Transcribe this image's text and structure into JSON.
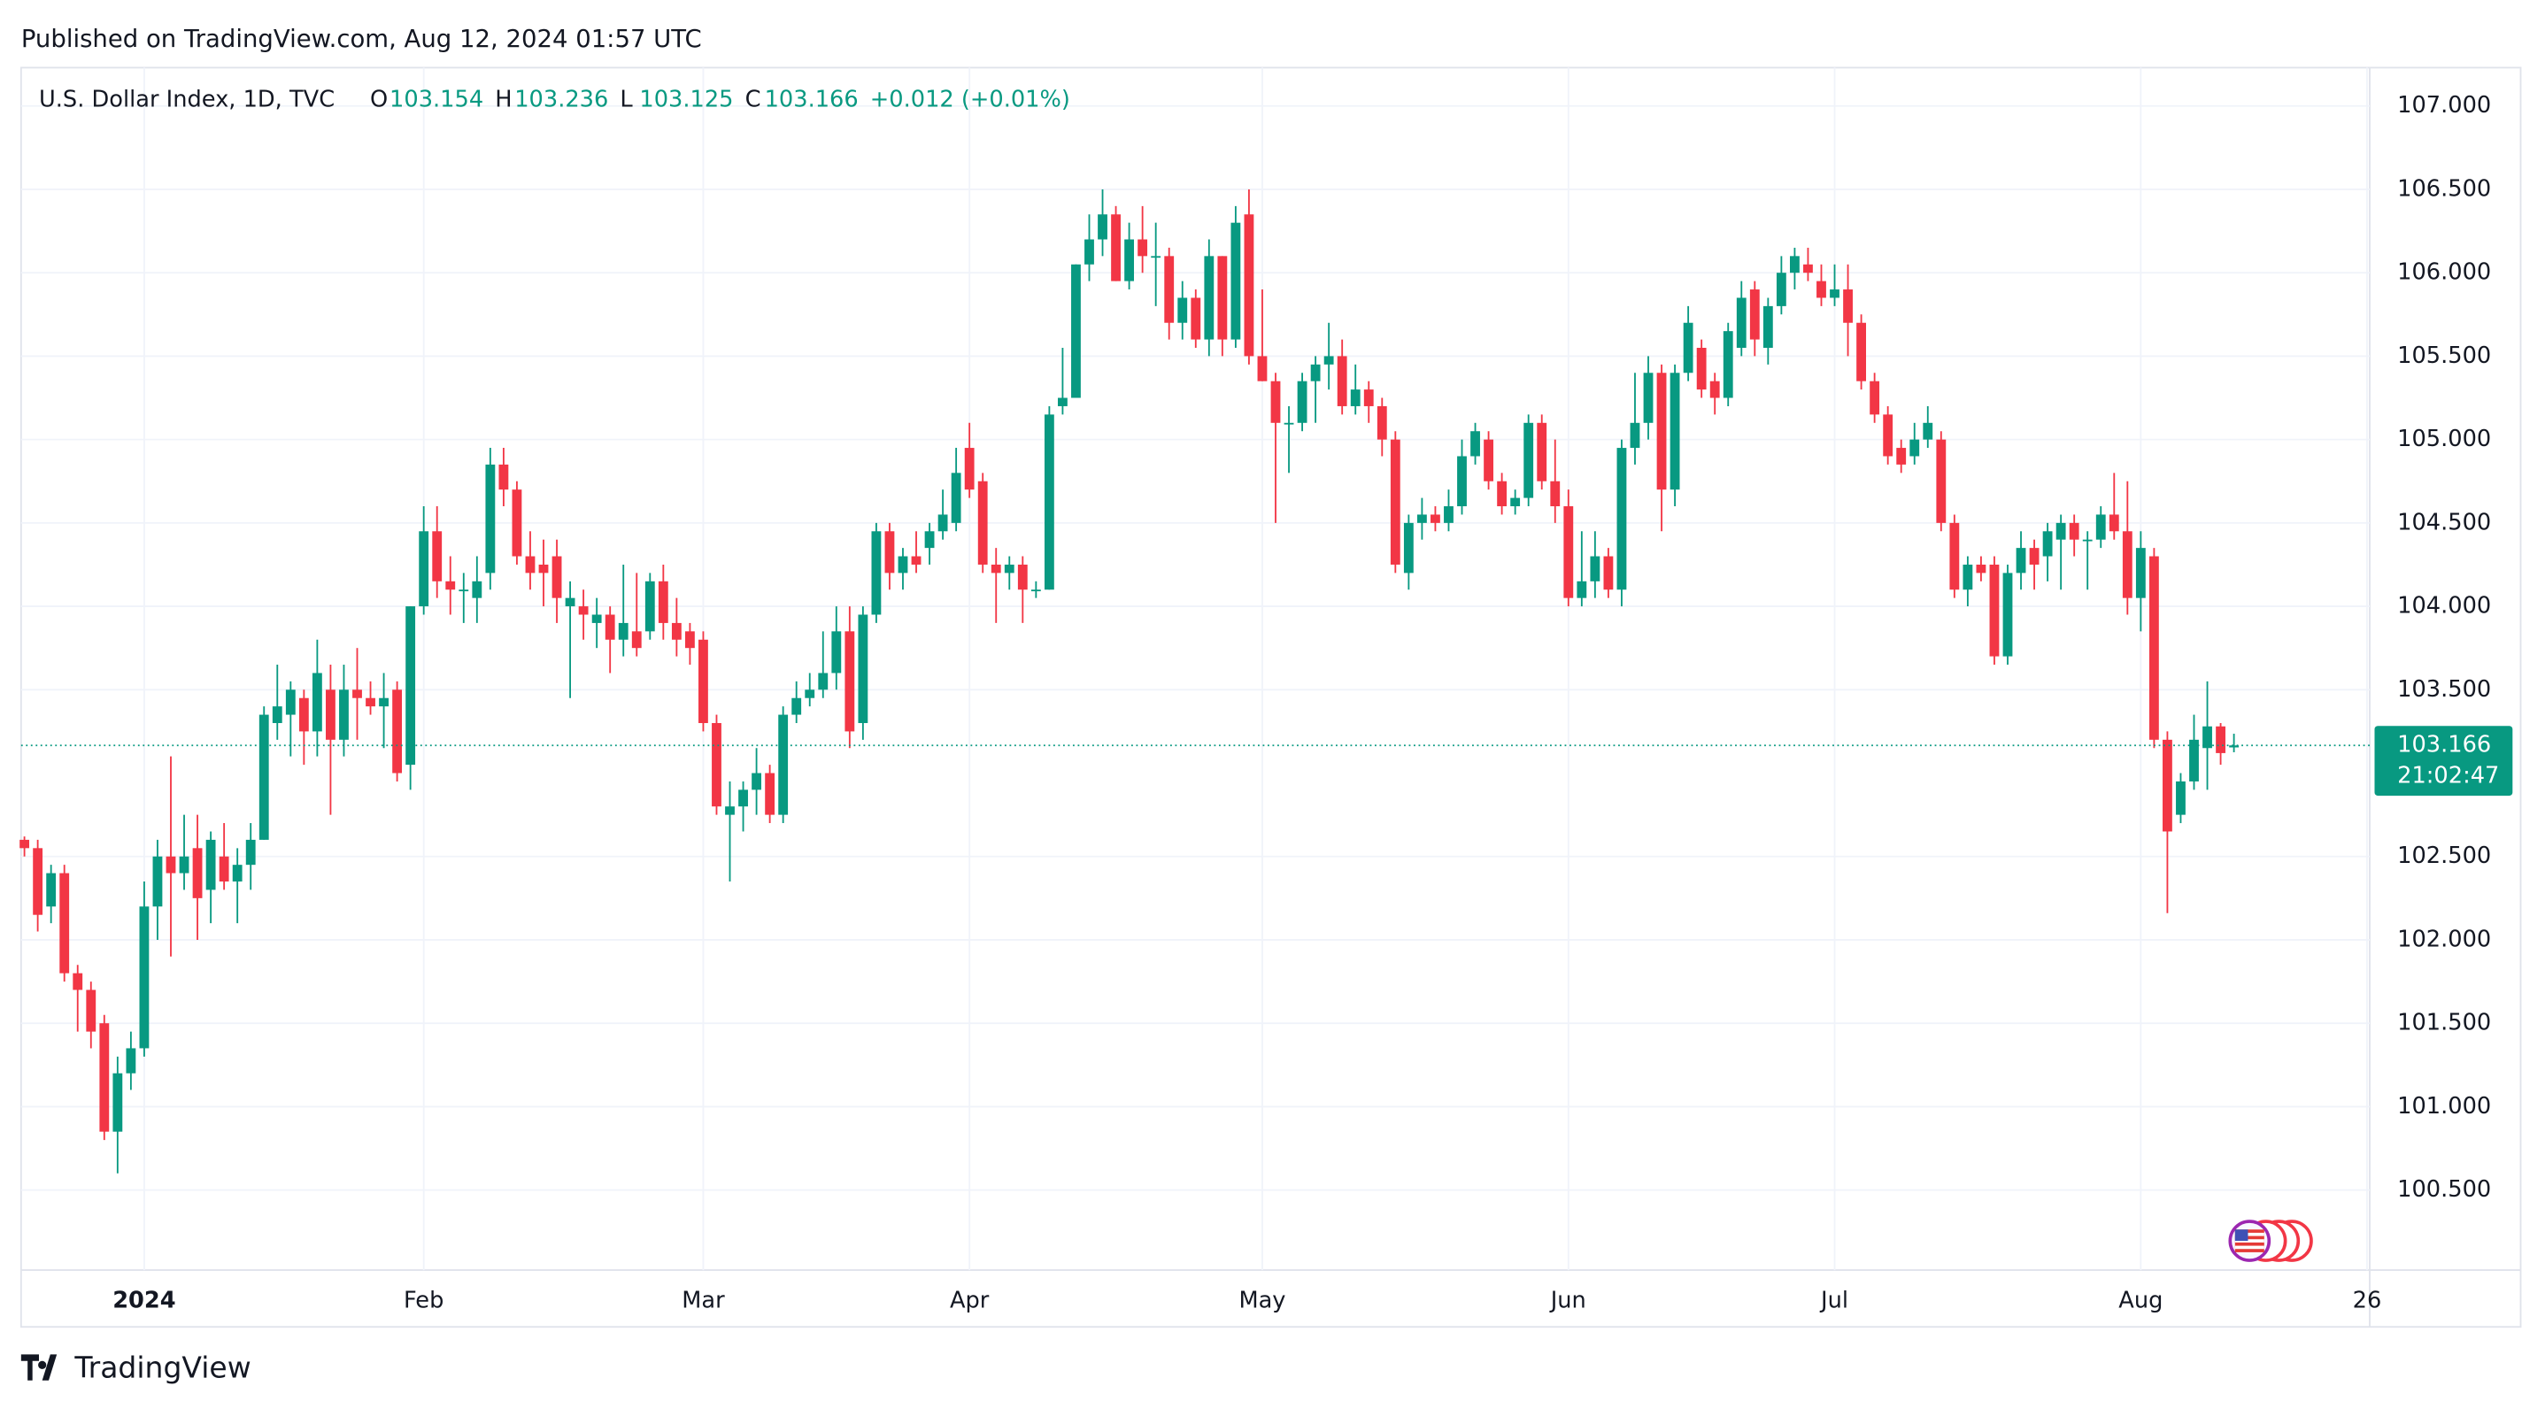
{
  "published": "Published on TradingView.com, Aug 12, 2024 01:57 UTC",
  "footer": "TradingView",
  "chart_data": {
    "type": "candlestick",
    "title": "U.S. Dollar Index, 1D, TVC",
    "ohlc_labels": [
      "O",
      "H",
      "L",
      "C"
    ],
    "change": "+0.012 (+0.01%)",
    "countdown": "21:02:47",
    "up_color": "#089981",
    "down_color": "#f23645",
    "grid": true,
    "xlim": [
      -0.25,
      176.2
    ],
    "xticks": [
      {
        "value": 9,
        "label": "2024"
      },
      {
        "value": 30,
        "label": "Feb"
      },
      {
        "value": 51,
        "label": "Mar"
      },
      {
        "value": 71,
        "label": "Apr"
      },
      {
        "value": 93,
        "label": "May"
      },
      {
        "value": 116,
        "label": "Jun"
      },
      {
        "value": 136,
        "label": "Jul"
      },
      {
        "value": 159,
        "label": "Aug"
      },
      {
        "value": 176,
        "label": "26"
      }
    ],
    "ylim": [
      100.02,
      107.23
    ],
    "yticks": [
      {
        "value": 107,
        "label": "107.000"
      },
      {
        "value": 106.5,
        "label": "106.500"
      },
      {
        "value": 106,
        "label": "106.000"
      },
      {
        "value": 105.5,
        "label": "105.500"
      },
      {
        "value": 105,
        "label": "105.000"
      },
      {
        "value": 104.5,
        "label": "104.500"
      },
      {
        "value": 104,
        "label": "104.000"
      },
      {
        "value": 103.5,
        "label": "103.500"
      },
      {
        "value": 102.5,
        "label": "102.500"
      },
      {
        "value": 102,
        "label": "102.000"
      },
      {
        "value": 101.5,
        "label": "101.500"
      },
      {
        "value": 101,
        "label": "101.000"
      },
      {
        "value": 100.5,
        "label": "100.500"
      }
    ],
    "candles": [
      [
        102.6,
        102.62,
        102.5,
        102.55
      ],
      [
        102.55,
        102.6,
        102.05,
        102.15
      ],
      [
        102.2,
        102.45,
        102.1,
        102.4
      ],
      [
        102.4,
        102.45,
        101.75,
        101.8
      ],
      [
        101.8,
        101.85,
        101.45,
        101.7
      ],
      [
        101.7,
        101.75,
        101.35,
        101.45
      ],
      [
        101.5,
        101.55,
        100.8,
        100.85
      ],
      [
        100.85,
        101.3,
        100.6,
        101.2
      ],
      [
        101.2,
        101.45,
        101.1,
        101.35
      ],
      [
        101.35,
        102.35,
        101.3,
        102.2
      ],
      [
        102.2,
        102.6,
        102.0,
        102.5
      ],
      [
        102.5,
        103.1,
        101.9,
        102.4
      ],
      [
        102.4,
        102.75,
        102.3,
        102.5
      ],
      [
        102.55,
        102.75,
        102.0,
        102.25
      ],
      [
        102.3,
        102.65,
        102.1,
        102.6
      ],
      [
        102.5,
        102.7,
        102.3,
        102.35
      ],
      [
        102.35,
        102.55,
        102.1,
        102.45
      ],
      [
        102.45,
        102.7,
        102.3,
        102.6
      ],
      [
        102.6,
        103.4,
        102.6,
        103.35
      ],
      [
        103.3,
        103.65,
        103.2,
        103.4
      ],
      [
        103.35,
        103.55,
        103.1,
        103.5
      ],
      [
        103.45,
        103.5,
        103.05,
        103.25
      ],
      [
        103.25,
        103.8,
        103.1,
        103.6
      ],
      [
        103.5,
        103.65,
        102.75,
        103.2
      ],
      [
        103.2,
        103.65,
        103.1,
        103.5
      ],
      [
        103.5,
        103.75,
        103.2,
        103.45
      ],
      [
        103.45,
        103.55,
        103.35,
        103.4
      ],
      [
        103.4,
        103.6,
        103.15,
        103.45
      ],
      [
        103.5,
        103.55,
        102.95,
        103.0
      ],
      [
        103.05,
        104.0,
        102.9,
        104.0
      ],
      [
        104.0,
        104.6,
        103.95,
        104.45
      ],
      [
        104.45,
        104.6,
        104.05,
        104.15
      ],
      [
        104.15,
        104.3,
        103.95,
        104.1
      ],
      [
        104.1,
        104.2,
        103.9,
        104.1
      ],
      [
        104.05,
        104.3,
        103.9,
        104.15
      ],
      [
        104.2,
        104.95,
        104.1,
        104.85
      ],
      [
        104.85,
        104.95,
        104.6,
        104.7
      ],
      [
        104.7,
        104.75,
        104.25,
        104.3
      ],
      [
        104.3,
        104.45,
        104.1,
        104.2
      ],
      [
        104.25,
        104.4,
        104.0,
        104.2
      ],
      [
        104.3,
        104.4,
        103.9,
        104.05
      ],
      [
        104.0,
        104.15,
        103.45,
        104.05
      ],
      [
        104.0,
        104.1,
        103.8,
        103.95
      ],
      [
        103.9,
        104.05,
        103.75,
        103.95
      ],
      [
        103.95,
        104.0,
        103.6,
        103.8
      ],
      [
        103.8,
        104.25,
        103.7,
        103.9
      ],
      [
        103.85,
        104.2,
        103.7,
        103.75
      ],
      [
        103.85,
        104.2,
        103.8,
        104.15
      ],
      [
        104.15,
        104.25,
        103.8,
        103.9
      ],
      [
        103.9,
        104.05,
        103.7,
        103.8
      ],
      [
        103.85,
        103.9,
        103.65,
        103.75
      ],
      [
        103.8,
        103.85,
        103.25,
        103.3
      ],
      [
        103.3,
        103.35,
        102.75,
        102.8
      ],
      [
        102.75,
        102.95,
        102.35,
        102.8
      ],
      [
        102.8,
        102.95,
        102.65,
        102.9
      ],
      [
        102.9,
        103.15,
        102.75,
        103.0
      ],
      [
        103.0,
        103.05,
        102.7,
        102.75
      ],
      [
        102.75,
        103.4,
        102.7,
        103.35
      ],
      [
        103.35,
        103.55,
        103.3,
        103.45
      ],
      [
        103.45,
        103.6,
        103.4,
        103.5
      ],
      [
        103.5,
        103.85,
        103.45,
        103.6
      ],
      [
        103.6,
        104.0,
        103.5,
        103.85
      ],
      [
        103.85,
        104.0,
        103.15,
        103.25
      ],
      [
        103.3,
        104.0,
        103.2,
        103.95
      ],
      [
        103.95,
        104.5,
        103.9,
        104.45
      ],
      [
        104.45,
        104.5,
        104.1,
        104.2
      ],
      [
        104.2,
        104.35,
        104.1,
        104.3
      ],
      [
        104.3,
        104.45,
        104.2,
        104.25
      ],
      [
        104.35,
        104.5,
        104.25,
        104.45
      ],
      [
        104.45,
        104.7,
        104.4,
        104.55
      ],
      [
        104.5,
        104.95,
        104.45,
        104.8
      ],
      [
        104.95,
        105.1,
        104.65,
        104.7
      ],
      [
        104.75,
        104.8,
        104.2,
        104.25
      ],
      [
        104.25,
        104.35,
        103.9,
        104.2
      ],
      [
        104.2,
        104.3,
        104.1,
        104.25
      ],
      [
        104.25,
        104.3,
        103.9,
        104.1
      ],
      [
        104.1,
        104.15,
        104.05,
        104.1
      ],
      [
        104.1,
        105.2,
        104.1,
        105.15
      ],
      [
        105.2,
        105.55,
        105.15,
        105.25
      ],
      [
        105.25,
        106.05,
        105.25,
        106.05
      ],
      [
        106.05,
        106.35,
        105.95,
        106.2
      ],
      [
        106.2,
        106.5,
        106.1,
        106.35
      ],
      [
        106.35,
        106.4,
        105.95,
        105.95
      ],
      [
        105.95,
        106.3,
        105.9,
        106.2
      ],
      [
        106.2,
        106.4,
        106.0,
        106.1
      ],
      [
        106.1,
        106.3,
        105.8,
        106.1
      ],
      [
        106.1,
        106.15,
        105.6,
        105.7
      ],
      [
        105.7,
        105.95,
        105.6,
        105.85
      ],
      [
        105.85,
        105.9,
        105.55,
        105.6
      ],
      [
        105.6,
        106.2,
        105.5,
        106.1
      ],
      [
        106.1,
        106.1,
        105.5,
        105.6
      ],
      [
        105.6,
        106.4,
        105.55,
        106.3
      ],
      [
        106.35,
        106.5,
        105.45,
        105.5
      ],
      [
        105.5,
        105.9,
        105.35,
        105.35
      ],
      [
        105.35,
        105.4,
        104.5,
        105.1
      ],
      [
        105.1,
        105.2,
        104.8,
        105.1
      ],
      [
        105.1,
        105.4,
        105.05,
        105.35
      ],
      [
        105.35,
        105.5,
        105.1,
        105.45
      ],
      [
        105.45,
        105.7,
        105.3,
        105.5
      ],
      [
        105.5,
        105.6,
        105.15,
        105.2
      ],
      [
        105.2,
        105.45,
        105.15,
        105.3
      ],
      [
        105.3,
        105.35,
        105.1,
        105.2
      ],
      [
        105.2,
        105.25,
        104.9,
        105.0
      ],
      [
        105.0,
        105.05,
        104.2,
        104.25
      ],
      [
        104.2,
        104.55,
        104.1,
        104.5
      ],
      [
        104.5,
        104.65,
        104.4,
        104.55
      ],
      [
        104.55,
        104.6,
        104.45,
        104.5
      ],
      [
        104.5,
        104.7,
        104.45,
        104.6
      ],
      [
        104.6,
        105.0,
        104.55,
        104.9
      ],
      [
        104.9,
        105.1,
        104.85,
        105.05
      ],
      [
        105.0,
        105.05,
        104.7,
        104.75
      ],
      [
        104.75,
        104.8,
        104.55,
        104.6
      ],
      [
        104.6,
        104.7,
        104.55,
        104.65
      ],
      [
        104.65,
        105.15,
        104.6,
        105.1
      ],
      [
        105.1,
        105.15,
        104.7,
        104.75
      ],
      [
        104.75,
        105.0,
        104.5,
        104.6
      ],
      [
        104.6,
        104.7,
        104.0,
        104.05
      ],
      [
        104.05,
        104.45,
        104.0,
        104.15
      ],
      [
        104.15,
        104.45,
        104.05,
        104.3
      ],
      [
        104.3,
        104.35,
        104.05,
        104.1
      ],
      [
        104.1,
        105.0,
        104.0,
        104.95
      ],
      [
        104.95,
        105.4,
        104.85,
        105.1
      ],
      [
        105.1,
        105.5,
        105.0,
        105.4
      ],
      [
        105.4,
        105.45,
        104.45,
        104.7
      ],
      [
        104.7,
        105.45,
        104.6,
        105.4
      ],
      [
        105.4,
        105.8,
        105.35,
        105.7
      ],
      [
        105.55,
        105.6,
        105.25,
        105.3
      ],
      [
        105.35,
        105.4,
        105.15,
        105.25
      ],
      [
        105.25,
        105.7,
        105.2,
        105.65
      ],
      [
        105.55,
        105.95,
        105.5,
        105.85
      ],
      [
        105.9,
        105.95,
        105.5,
        105.6
      ],
      [
        105.55,
        105.85,
        105.45,
        105.8
      ],
      [
        105.8,
        106.1,
        105.75,
        106.0
      ],
      [
        106.0,
        106.15,
        105.9,
        106.1
      ],
      [
        106.05,
        106.15,
        105.95,
        106.0
      ],
      [
        105.95,
        106.05,
        105.8,
        105.85
      ],
      [
        105.85,
        106.05,
        105.8,
        105.9
      ],
      [
        105.9,
        106.05,
        105.5,
        105.7
      ],
      [
        105.7,
        105.75,
        105.3,
        105.35
      ],
      [
        105.35,
        105.4,
        105.1,
        105.15
      ],
      [
        105.15,
        105.2,
        104.85,
        104.9
      ],
      [
        104.95,
        105.0,
        104.8,
        104.85
      ],
      [
        104.9,
        105.1,
        104.85,
        105.0
      ],
      [
        105.0,
        105.2,
        104.95,
        105.1
      ],
      [
        105.0,
        105.05,
        104.45,
        104.5
      ],
      [
        104.5,
        104.55,
        104.05,
        104.1
      ],
      [
        104.1,
        104.3,
        104.0,
        104.25
      ],
      [
        104.25,
        104.3,
        104.15,
        104.2
      ],
      [
        104.25,
        104.3,
        103.65,
        103.7
      ],
      [
        103.7,
        104.25,
        103.65,
        104.2
      ],
      [
        104.2,
        104.45,
        104.1,
        104.35
      ],
      [
        104.35,
        104.4,
        104.1,
        104.25
      ],
      [
        104.3,
        104.5,
        104.15,
        104.45
      ],
      [
        104.4,
        104.55,
        104.1,
        104.5
      ],
      [
        104.5,
        104.55,
        104.3,
        104.4
      ],
      [
        104.4,
        104.45,
        104.1,
        104.4
      ],
      [
        104.4,
        104.6,
        104.35,
        104.55
      ],
      [
        104.55,
        104.8,
        104.4,
        104.45
      ],
      [
        104.45,
        104.75,
        103.95,
        104.05
      ],
      [
        104.05,
        104.45,
        103.85,
        104.35
      ],
      [
        104.3,
        104.35,
        103.15,
        103.2
      ],
      [
        103.2,
        103.25,
        102.16,
        102.65
      ],
      [
        102.75,
        103.0,
        102.7,
        102.95
      ],
      [
        102.95,
        103.35,
        102.9,
        103.2
      ],
      [
        103.15,
        103.55,
        102.9,
        103.28
      ],
      [
        103.28,
        103.3,
        103.05,
        103.12
      ],
      [
        103.154,
        103.236,
        103.125,
        103.166
      ]
    ]
  }
}
